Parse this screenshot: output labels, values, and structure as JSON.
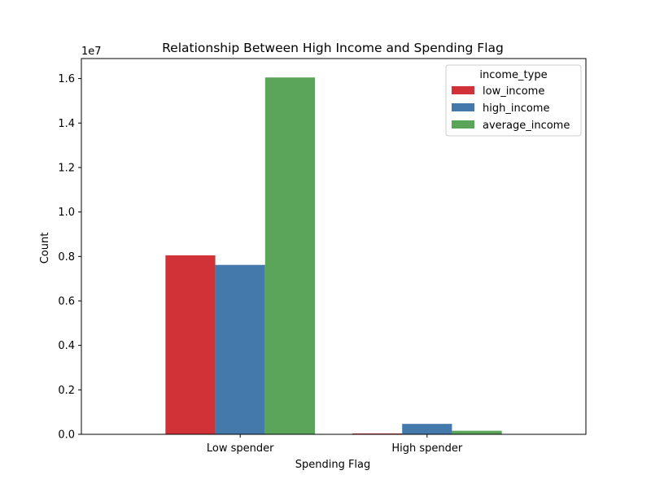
{
  "chart_data": {
    "type": "bar",
    "title": "Relationship Between High Income and Spending Flag",
    "xlabel": "Spending Flag",
    "ylabel": "Count",
    "y_offset_label": "1e7",
    "categories": [
      "Low spender",
      "High spender"
    ],
    "ylim": [
      0,
      16900000
    ],
    "yticks": [
      0,
      2000000,
      4000000,
      6000000,
      8000000,
      10000000,
      12000000,
      14000000,
      16000000
    ],
    "ytick_labels": [
      "0.0",
      "0.2",
      "0.4",
      "0.6",
      "0.8",
      "1.0",
      "1.2",
      "1.4",
      "1.6"
    ],
    "grid": false,
    "legend": {
      "title": "income_type",
      "position": "top-right"
    },
    "series": [
      {
        "name": "low_income",
        "color": "#d03237",
        "values": [
          8050000,
          40000
        ]
      },
      {
        "name": "high_income",
        "color": "#447aab",
        "values": [
          7620000,
          470000
        ]
      },
      {
        "name": "average_income",
        "color": "#5aa55a",
        "values": [
          16050000,
          160000
        ]
      }
    ]
  }
}
